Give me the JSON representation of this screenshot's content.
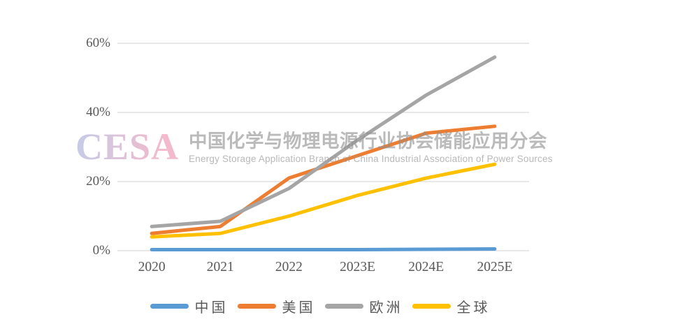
{
  "watermark": {
    "logo_text": "CESA",
    "title_cn": "中国化学与物理电源行业协会储能应用分会",
    "subtitle_en": "Energy Storage Application Branch of China Industrial Association of Power Sources",
    "logo_gradient_start": "#c6cbe7",
    "logo_gradient_end": "#f3b9cc"
  },
  "colors": {
    "background": "#ffffff",
    "gridline": "#d9d9d9",
    "axis_label": "#595959"
  },
  "chart_data": {
    "type": "line",
    "title": "",
    "xlabel": "",
    "ylabel": "",
    "categories": [
      "2020",
      "2021",
      "2022",
      "2023E",
      "2024E",
      "2025E"
    ],
    "series": [
      {
        "key": "china",
        "name": "中国",
        "color": "#5B9BD5",
        "values": [
          0.3,
          0.3,
          0.3,
          0.3,
          0.4,
          0.5
        ]
      },
      {
        "key": "usa",
        "name": "美国",
        "color": "#ED7D31",
        "values": [
          5,
          7,
          21,
          27.5,
          34,
          36
        ]
      },
      {
        "key": "europe",
        "name": "欧洲",
        "color": "#A5A5A5",
        "values": [
          7,
          8.5,
          18,
          32,
          45,
          56
        ]
      },
      {
        "key": "global",
        "name": "全球",
        "color": "#FFC000",
        "values": [
          4,
          5,
          10,
          16,
          21,
          25
        ]
      }
    ],
    "yticks": [
      {
        "label": "0%",
        "value": 0
      },
      {
        "label": "20%",
        "value": 20
      },
      {
        "label": "40%",
        "value": 40
      },
      {
        "label": "60%",
        "value": 60
      }
    ],
    "ylim": [
      0,
      60
    ],
    "grid": "horizontal-only",
    "legend_position": "bottom",
    "line_width": 5
  }
}
